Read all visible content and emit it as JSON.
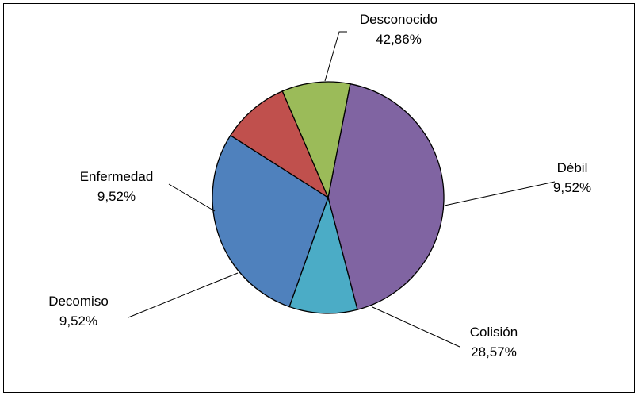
{
  "chart_data": {
    "type": "pie",
    "title": "",
    "slices": [
      {
        "name": "Desconocido",
        "value": 42.86,
        "label": "42,86%",
        "color": "#8064A2"
      },
      {
        "name": "Débil",
        "value": 9.52,
        "label": "9,52%",
        "color": "#4BACC6"
      },
      {
        "name": "Colisión",
        "value": 28.57,
        "label": "28,57%",
        "color": "#4F81BD"
      },
      {
        "name": "Decomiso",
        "value": 9.52,
        "label": "9,52%",
        "color": "#C0504D"
      },
      {
        "name": "Enfermedad",
        "value": 9.52,
        "label": "9,52%",
        "color": "#9BBB59"
      }
    ],
    "legend": "none",
    "data_labels": "category-and-percent"
  }
}
